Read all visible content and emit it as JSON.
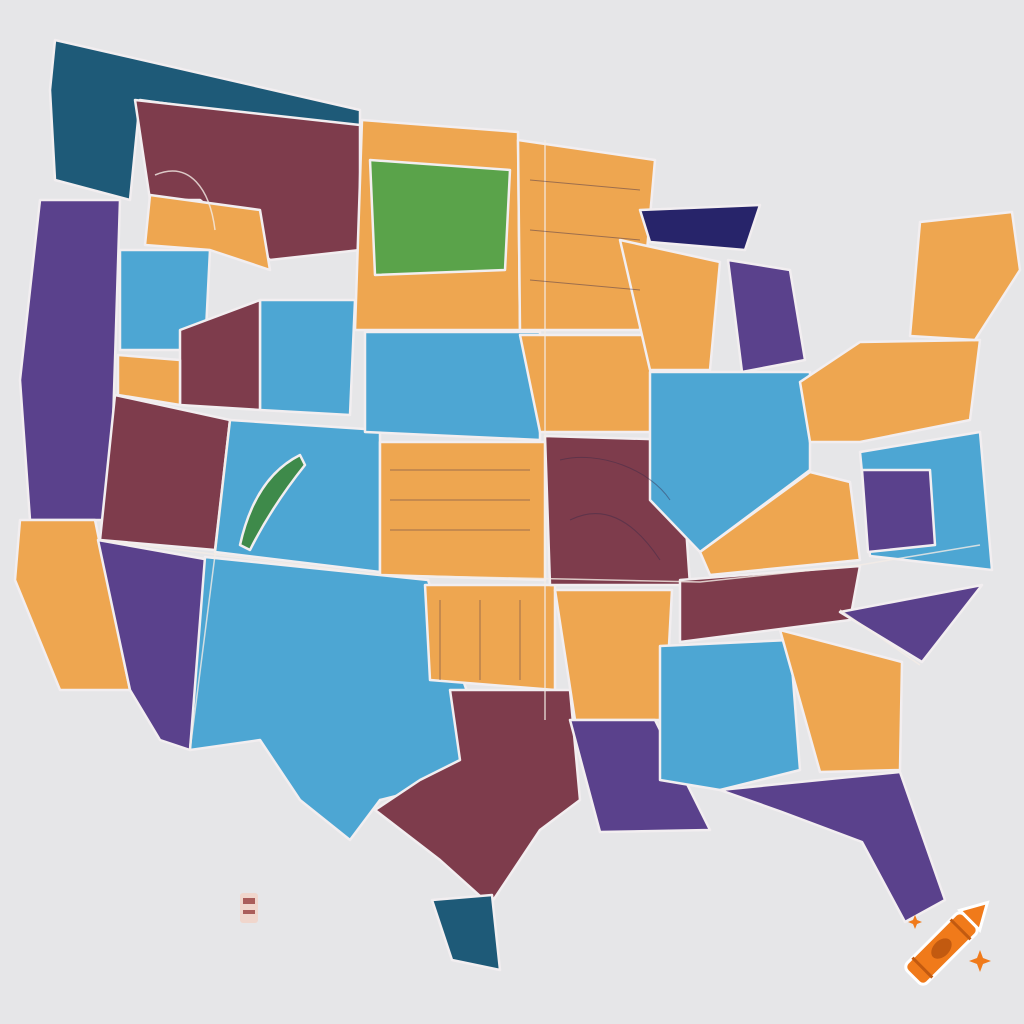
{
  "map": {
    "palette": {
      "orange": "#eea650",
      "blue": "#4da6d3",
      "purple": "#5a418c",
      "maroon": "#7e3c4c",
      "teal": "#1e5a78",
      "navy": "#27246a",
      "green": "#5aa34a",
      "background": "#e6e6e8"
    },
    "icons": [
      "stamp-icon",
      "crayon-logo-icon"
    ]
  }
}
